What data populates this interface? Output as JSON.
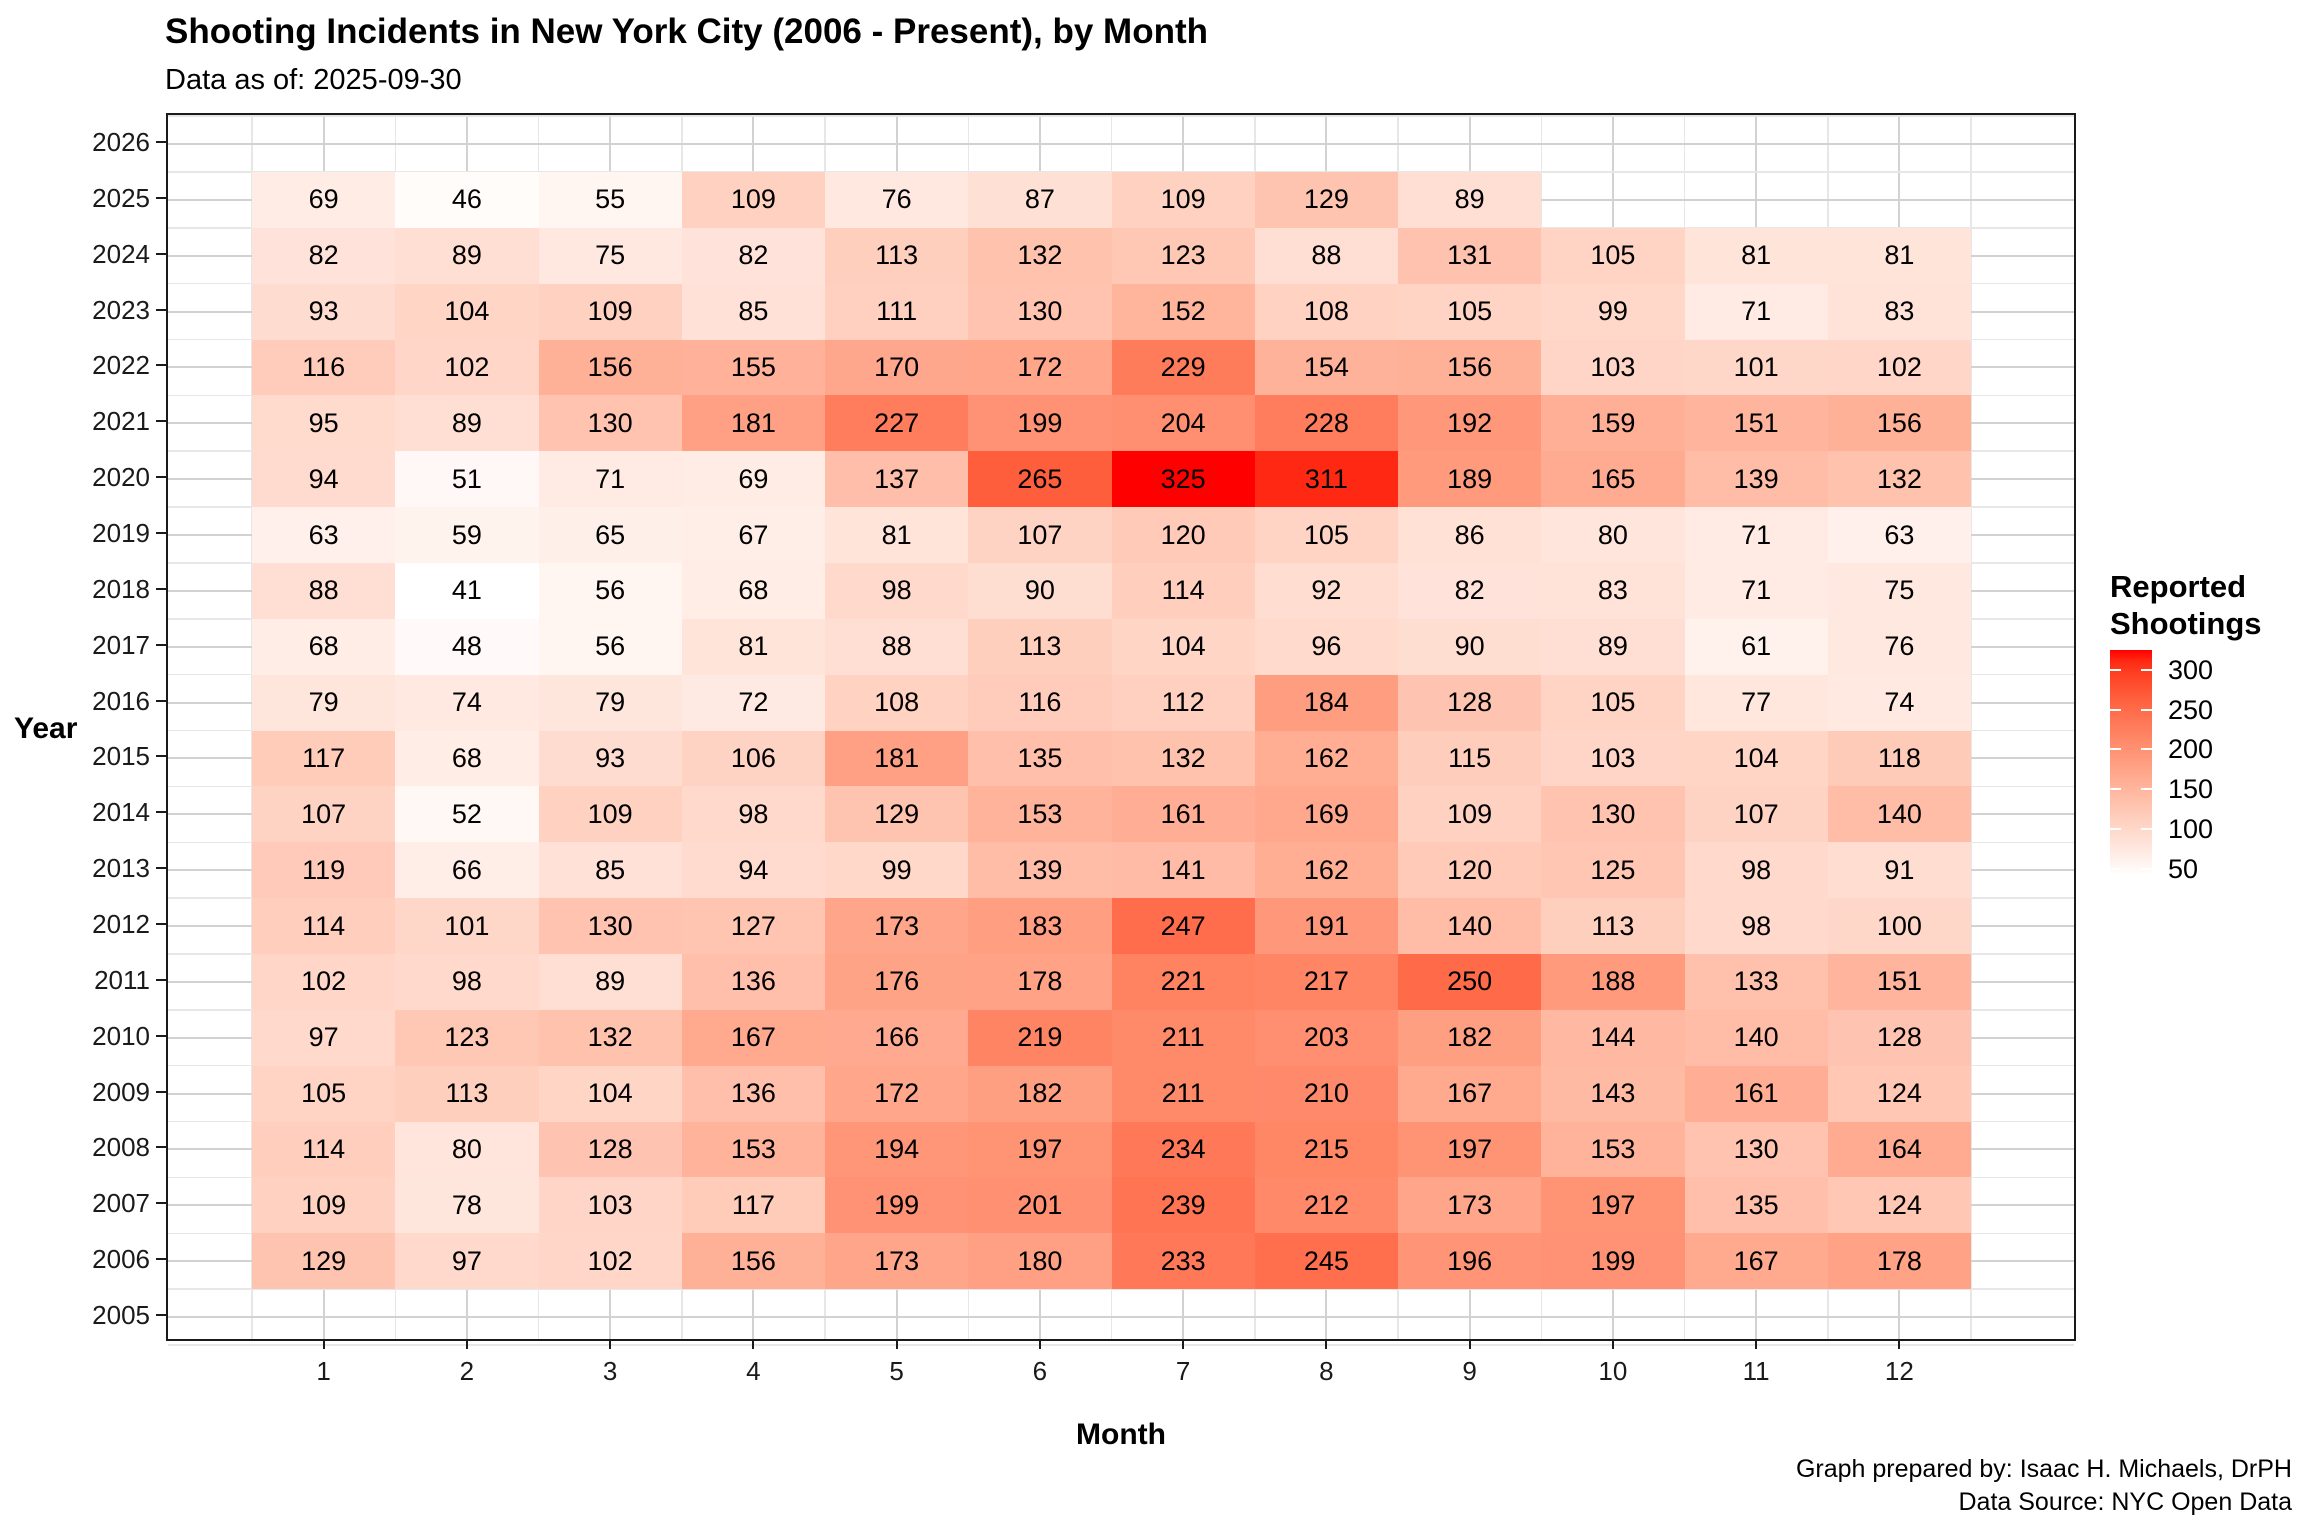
{
  "chart_data": {
    "type": "heatmap",
    "title": "Shooting Incidents in New York City (2006 - Present), by Month",
    "subtitle": "Data as of: 2025-09-30",
    "xlabel": "Month",
    "ylabel": "Year",
    "x_categories": [
      1,
      2,
      3,
      4,
      5,
      6,
      7,
      8,
      9,
      10,
      11,
      12
    ],
    "y_tick_years": [
      2005,
      2006,
      2007,
      2008,
      2009,
      2010,
      2011,
      2012,
      2013,
      2014,
      2015,
      2016,
      2017,
      2018,
      2019,
      2020,
      2021,
      2022,
      2023,
      2024,
      2025,
      2026
    ],
    "rows": [
      {
        "year": 2025,
        "values": [
          69,
          46,
          55,
          109,
          76,
          87,
          109,
          129,
          89,
          null,
          null,
          null
        ]
      },
      {
        "year": 2024,
        "values": [
          82,
          89,
          75,
          82,
          113,
          132,
          123,
          88,
          131,
          105,
          81,
          81
        ]
      },
      {
        "year": 2023,
        "values": [
          93,
          104,
          109,
          85,
          111,
          130,
          152,
          108,
          105,
          99,
          71,
          83
        ]
      },
      {
        "year": 2022,
        "values": [
          116,
          102,
          156,
          155,
          170,
          172,
          229,
          154,
          156,
          103,
          101,
          102
        ]
      },
      {
        "year": 2021,
        "values": [
          95,
          89,
          130,
          181,
          227,
          199,
          204,
          228,
          192,
          159,
          151,
          156
        ]
      },
      {
        "year": 2020,
        "values": [
          94,
          51,
          71,
          69,
          137,
          265,
          325,
          311,
          189,
          165,
          139,
          132
        ]
      },
      {
        "year": 2019,
        "values": [
          63,
          59,
          65,
          67,
          81,
          107,
          120,
          105,
          86,
          80,
          71,
          63
        ]
      },
      {
        "year": 2018,
        "values": [
          88,
          41,
          56,
          68,
          98,
          90,
          114,
          92,
          82,
          83,
          71,
          75
        ]
      },
      {
        "year": 2017,
        "values": [
          68,
          48,
          56,
          81,
          88,
          113,
          104,
          96,
          90,
          89,
          61,
          76
        ]
      },
      {
        "year": 2016,
        "values": [
          79,
          74,
          79,
          72,
          108,
          116,
          112,
          184,
          128,
          105,
          77,
          74
        ]
      },
      {
        "year": 2015,
        "values": [
          117,
          68,
          93,
          106,
          181,
          135,
          132,
          162,
          115,
          103,
          104,
          118
        ]
      },
      {
        "year": 2014,
        "values": [
          107,
          52,
          109,
          98,
          129,
          153,
          161,
          169,
          109,
          130,
          107,
          140
        ]
      },
      {
        "year": 2013,
        "values": [
          119,
          66,
          85,
          94,
          99,
          139,
          141,
          162,
          120,
          125,
          98,
          91
        ]
      },
      {
        "year": 2012,
        "values": [
          114,
          101,
          130,
          127,
          173,
          183,
          247,
          191,
          140,
          113,
          98,
          100
        ]
      },
      {
        "year": 2011,
        "values": [
          102,
          98,
          89,
          136,
          176,
          178,
          221,
          217,
          250,
          188,
          133,
          151
        ]
      },
      {
        "year": 2010,
        "values": [
          97,
          123,
          132,
          167,
          166,
          219,
          211,
          203,
          182,
          144,
          140,
          128
        ]
      },
      {
        "year": 2009,
        "values": [
          105,
          113,
          104,
          136,
          172,
          182,
          211,
          210,
          167,
          143,
          161,
          124
        ]
      },
      {
        "year": 2008,
        "values": [
          114,
          80,
          128,
          153,
          194,
          197,
          234,
          215,
          197,
          153,
          130,
          164
        ]
      },
      {
        "year": 2007,
        "values": [
          109,
          78,
          103,
          117,
          199,
          201,
          239,
          212,
          173,
          197,
          135,
          124
        ]
      },
      {
        "year": 2006,
        "values": [
          129,
          97,
          102,
          156,
          173,
          180,
          233,
          245,
          196,
          199,
          167,
          178
        ]
      }
    ],
    "legend": {
      "title_lines": [
        "Reported",
        "Shootings"
      ],
      "ticks": [
        300,
        250,
        200,
        150,
        100,
        50
      ],
      "low_color": "#FFFFFF",
      "high_color": "#FF0000",
      "domain": [
        41,
        325
      ],
      "position": "right"
    },
    "caption_lines": [
      "Graph prepared by: Isaac H. Michaels, DrPH",
      "Data Source: NYC Open Data"
    ],
    "grid": true,
    "axis_ranges": {
      "x": [
        0.5,
        12.5
      ],
      "y": [
        2004.5,
        2026.5
      ]
    }
  }
}
